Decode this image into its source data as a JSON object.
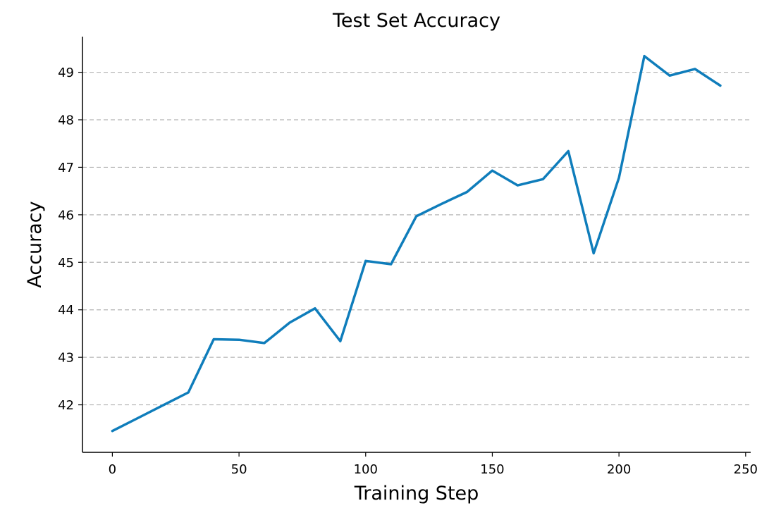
{
  "chart_data": {
    "type": "line",
    "title": "Test Set Accuracy",
    "xlabel": "Training Step",
    "ylabel": "Accuracy",
    "xlim": [
      -11.8,
      252
    ],
    "ylim": [
      41.0,
      49.75
    ],
    "xticks": [
      0,
      50,
      100,
      150,
      200,
      250
    ],
    "yticks": [
      42,
      43,
      44,
      45,
      46,
      47,
      48,
      49
    ],
    "grid": {
      "y": true,
      "x": false,
      "style": "dashed"
    },
    "series": [
      {
        "color": "#0f7dbb",
        "x": [
          0,
          10,
          20,
          30,
          40,
          50,
          60,
          70,
          80,
          90,
          100,
          110,
          120,
          130,
          140,
          150,
          160,
          170,
          180,
          190,
          200,
          210,
          220,
          230,
          240
        ],
        "y": [
          41.45,
          41.72,
          41.99,
          42.26,
          43.38,
          43.37,
          43.3,
          43.73,
          44.03,
          43.34,
          45.03,
          44.96,
          45.97,
          46.23,
          46.48,
          46.93,
          46.62,
          46.75,
          47.34,
          45.19,
          46.78,
          49.34,
          48.93,
          49.07,
          48.72
        ]
      }
    ]
  }
}
